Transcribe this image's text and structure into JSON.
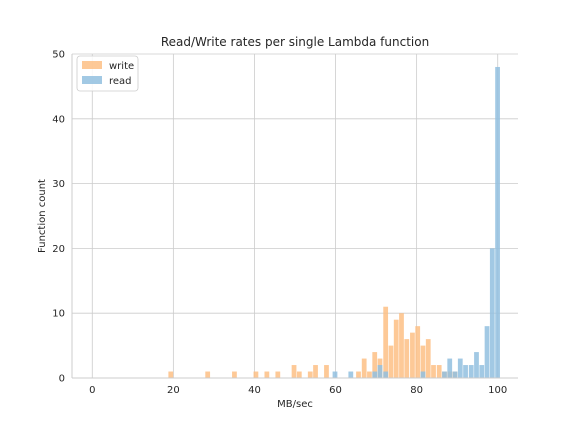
{
  "chart_data": {
    "type": "bar",
    "title": "Read/Write rates per single Lambda function",
    "xlabel": "MB/sec",
    "ylabel": "Function count",
    "xlim": [
      -5,
      105
    ],
    "ylim": [
      0,
      50
    ],
    "xticks": [
      0,
      20,
      40,
      60,
      80,
      100
    ],
    "yticks": [
      0,
      10,
      20,
      30,
      40,
      50
    ],
    "bin_width": 1.25,
    "grid": true,
    "legend_position": "top-left",
    "series": [
      {
        "name": "write",
        "color": "#fdbf85",
        "bins": [
          [
            19.4,
            1
          ],
          [
            28.5,
            1
          ],
          [
            35.1,
            1
          ],
          [
            40.4,
            1
          ],
          [
            43.1,
            1
          ],
          [
            45.8,
            1
          ],
          [
            49.8,
            2
          ],
          [
            51.1,
            1
          ],
          [
            53.8,
            1
          ],
          [
            55.1,
            2
          ],
          [
            57.8,
            2
          ],
          [
            65.7,
            1
          ],
          [
            67.1,
            3
          ],
          [
            68.4,
            1
          ],
          [
            69.7,
            4
          ],
          [
            71.0,
            3
          ],
          [
            72.4,
            11
          ],
          [
            73.7,
            5
          ],
          [
            75.0,
            9
          ],
          [
            76.3,
            10
          ],
          [
            77.6,
            6
          ],
          [
            79.0,
            7
          ],
          [
            80.3,
            8
          ],
          [
            81.6,
            5
          ],
          [
            82.9,
            6
          ],
          [
            84.2,
            2
          ],
          [
            85.6,
            2
          ],
          [
            86.9,
            1
          ],
          [
            88.2,
            1
          ],
          [
            89.5,
            1
          ]
        ]
      },
      {
        "name": "read",
        "color": "#92bfdf",
        "bins": [
          [
            59.9,
            1
          ],
          [
            63.8,
            1
          ],
          [
            69.7,
            1
          ],
          [
            71.0,
            2
          ],
          [
            72.4,
            1
          ],
          [
            81.6,
            1
          ],
          [
            86.9,
            1
          ],
          [
            88.2,
            3
          ],
          [
            89.5,
            1
          ],
          [
            90.8,
            3
          ],
          [
            92.1,
            2
          ],
          [
            93.5,
            2
          ],
          [
            94.8,
            4
          ],
          [
            96.1,
            2
          ],
          [
            97.4,
            8
          ],
          [
            98.7,
            20
          ],
          [
            100.0,
            48
          ]
        ]
      }
    ]
  }
}
